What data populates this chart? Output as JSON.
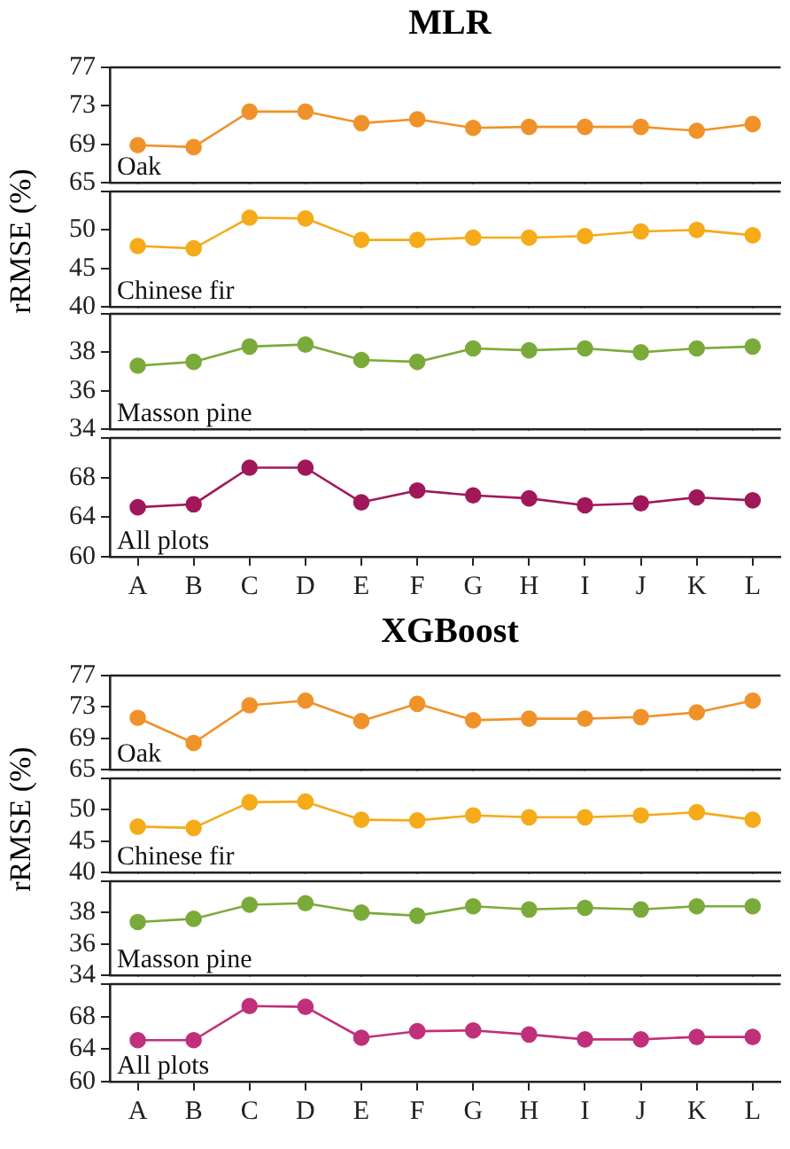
{
  "chart_data": [
    {
      "type": "line",
      "title": "MLR",
      "categories": [
        "A",
        "B",
        "C",
        "D",
        "E",
        "F",
        "G",
        "H",
        "I",
        "J",
        "K",
        "L"
      ],
      "ylim": [
        65,
        77
      ],
      "yticks": [
        65,
        69,
        73,
        77
      ],
      "tick_labels": "y",
      "grid": false,
      "marker": "circle",
      "series": [
        {
          "name": "Oak",
          "color": "#f0922a",
          "values": [
            68.9,
            68.7,
            72.4,
            72.4,
            71.2,
            71.6,
            70.7,
            70.8,
            70.8,
            70.8,
            70.4,
            71.1
          ]
        }
      ]
    },
    {
      "type": "line",
      "ylabel": "rRMSE (%)",
      "categories": [
        "A",
        "B",
        "C",
        "D",
        "E",
        "F",
        "G",
        "H",
        "I",
        "J",
        "K",
        "L"
      ],
      "ylim": [
        40,
        55
      ],
      "yticks": [
        40,
        45,
        50,
        {
          "value": 55,
          "label": null
        }
      ],
      "tick_labels": "y",
      "grid": false,
      "marker": "circle",
      "series": [
        {
          "name": "Chinese fir",
          "color": "#f5ab1a",
          "values": [
            47.9,
            47.6,
            51.6,
            51.5,
            48.7,
            48.7,
            49.0,
            49.0,
            49.2,
            49.8,
            50.0,
            49.3
          ]
        }
      ]
    },
    {
      "type": "line",
      "categories": [
        "A",
        "B",
        "C",
        "D",
        "E",
        "F",
        "G",
        "H",
        "I",
        "J",
        "K",
        "L"
      ],
      "ylim": [
        34,
        40
      ],
      "yticks": [
        34,
        36,
        38,
        {
          "value": 40,
          "label": null
        }
      ],
      "tick_labels": "y",
      "grid": false,
      "marker": "circle",
      "series": [
        {
          "name": "Masson pine",
          "color": "#7aab3a",
          "values": [
            37.3,
            37.5,
            38.3,
            38.4,
            37.6,
            37.5,
            38.2,
            38.1,
            38.2,
            38.0,
            38.2,
            38.3
          ]
        }
      ]
    },
    {
      "type": "line",
      "categories": [
        "A",
        "B",
        "C",
        "D",
        "E",
        "F",
        "G",
        "H",
        "I",
        "J",
        "K",
        "L"
      ],
      "ylim": [
        60,
        72
      ],
      "yticks": [
        60,
        64,
        68,
        {
          "value": 72,
          "label": null
        }
      ],
      "grid": false,
      "marker": "circle",
      "series": [
        {
          "name": "All plots",
          "color": "#a0185a",
          "values": [
            65.0,
            65.3,
            69.0,
            69.0,
            65.5,
            66.7,
            66.2,
            65.9,
            65.2,
            65.4,
            66.0,
            65.7
          ]
        }
      ]
    },
    {
      "type": "line",
      "title": "XGBoost",
      "categories": [
        "A",
        "B",
        "C",
        "D",
        "E",
        "F",
        "G",
        "H",
        "I",
        "J",
        "K",
        "L"
      ],
      "ylim": [
        65,
        77
      ],
      "yticks": [
        65,
        69,
        73,
        77
      ],
      "tick_labels": "y",
      "grid": false,
      "marker": "circle",
      "series": [
        {
          "name": "Oak",
          "color": "#f0922a",
          "values": [
            71.6,
            68.4,
            73.2,
            73.8,
            71.2,
            73.4,
            71.3,
            71.5,
            71.5,
            71.7,
            72.3,
            73.8
          ]
        }
      ]
    },
    {
      "type": "line",
      "ylabel": "rRMSE (%)",
      "categories": [
        "A",
        "B",
        "C",
        "D",
        "E",
        "F",
        "G",
        "H",
        "I",
        "J",
        "K",
        "L"
      ],
      "ylim": [
        40,
        55
      ],
      "yticks": [
        40,
        45,
        50,
        {
          "value": 55,
          "label": null
        }
      ],
      "tick_labels": "y",
      "grid": false,
      "marker": "circle",
      "series": [
        {
          "name": "Chinese fir",
          "color": "#f5ab1a",
          "values": [
            47.3,
            47.1,
            51.2,
            51.3,
            48.4,
            48.3,
            49.1,
            48.8,
            48.8,
            49.1,
            49.6,
            48.4
          ]
        }
      ]
    },
    {
      "type": "line",
      "categories": [
        "A",
        "B",
        "C",
        "D",
        "E",
        "F",
        "G",
        "H",
        "I",
        "J",
        "K",
        "L"
      ],
      "ylim": [
        34,
        40
      ],
      "yticks": [
        34,
        36,
        38,
        {
          "value": 40,
          "label": null
        }
      ],
      "tick_labels": "y",
      "grid": false,
      "marker": "circle",
      "series": [
        {
          "name": "Masson pine",
          "color": "#7aab3a",
          "values": [
            37.4,
            37.6,
            38.5,
            38.6,
            38.0,
            37.8,
            38.4,
            38.2,
            38.3,
            38.2,
            38.4,
            38.4
          ]
        }
      ]
    },
    {
      "type": "line",
      "categories": [
        "A",
        "B",
        "C",
        "D",
        "E",
        "F",
        "G",
        "H",
        "I",
        "J",
        "K",
        "L"
      ],
      "ylim": [
        60,
        72
      ],
      "yticks": [
        60,
        64,
        68,
        {
          "value": 72,
          "label": null
        }
      ],
      "grid": false,
      "marker": "circle",
      "series": [
        {
          "name": "All plots",
          "color": "#c0307a",
          "values": [
            65.1,
            65.1,
            69.3,
            69.2,
            65.4,
            66.2,
            66.3,
            65.8,
            65.2,
            65.2,
            65.5,
            65.5
          ]
        }
      ]
    }
  ]
}
